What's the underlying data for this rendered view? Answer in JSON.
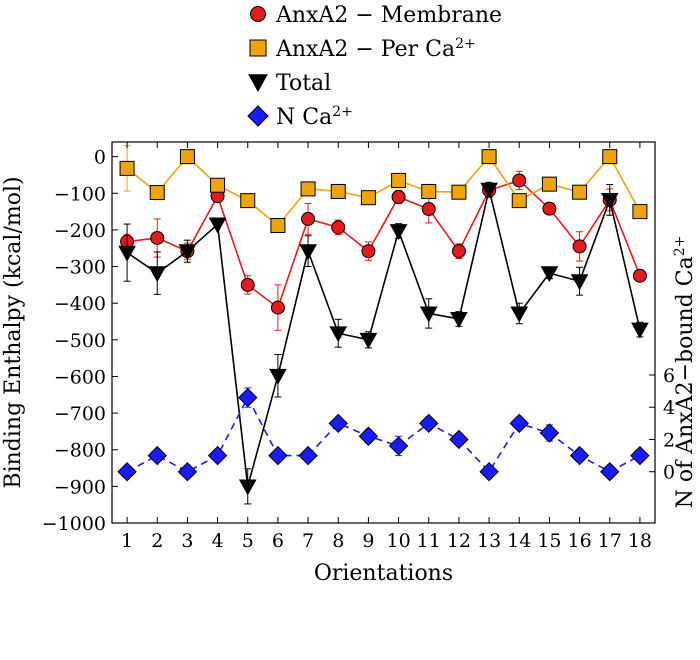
{
  "chart_data": {
    "type": "line",
    "title": "",
    "xlabel": "Orientations",
    "ylabel": "Binding Enthalpy (kcal/mol)",
    "ylabel_right": "N of AnxA2−bound Ca",
    "ylabel_right_sup": "2+",
    "x": [
      1,
      2,
      3,
      4,
      5,
      6,
      7,
      8,
      9,
      10,
      11,
      12,
      13,
      14,
      15,
      16,
      17,
      18
    ],
    "xlim": [
      0.5,
      18.5
    ],
    "ylim": [
      -1000,
      40
    ],
    "yticks": [
      0,
      -100,
      -200,
      -300,
      -400,
      -500,
      -600,
      -700,
      -800,
      -900,
      -1000
    ],
    "y2ticks": [
      0,
      2,
      4,
      6
    ],
    "y2_scale": {
      "value_at_zero": -860,
      "units_per_count": 44
    },
    "legend_position": "top (outside plot)",
    "series": [
      {
        "name": "AnxA2 − Membrane",
        "name_sup": "",
        "axis": "left",
        "marker": "circle",
        "color": "#e41a1c",
        "dashed": false,
        "values": [
          -232,
          -222,
          -258,
          -108,
          -350,
          -412,
          -170,
          -193,
          -258,
          -110,
          -143,
          -258,
          -92,
          -65,
          -142,
          -245,
          -118,
          -325
        ],
        "errors": [
          20,
          52,
          22,
          0,
          25,
          62,
          42,
          20,
          25,
          18,
          38,
          20,
          15,
          25,
          10,
          40,
          30,
          12
        ]
      },
      {
        "name": "AnxA2 − Per Ca",
        "name_sup": "2+",
        "axis": "left",
        "marker": "square",
        "color": "#f0a30a",
        "dashed": false,
        "values": [
          -32,
          -98,
          0,
          -78,
          -120,
          -188,
          -88,
          -95,
          -112,
          -65,
          -95,
          -97,
          0,
          -120,
          -75,
          -97,
          0,
          -150
        ],
        "errors": [
          62,
          0,
          0,
          0,
          0,
          0,
          0,
          0,
          0,
          20,
          0,
          0,
          0,
          0,
          0,
          0,
          0,
          0
        ]
      },
      {
        "name": "Total",
        "name_sup": "",
        "axis": "left",
        "marker": "triangle-down",
        "color": "#000000",
        "dashed": false,
        "values": [
          -262,
          -318,
          -258,
          -185,
          -900,
          -598,
          -258,
          -482,
          -500,
          -203,
          -428,
          -443,
          -90,
          -428,
          -318,
          -340,
          -118,
          -472
        ],
        "errors": [
          78,
          58,
          30,
          0,
          48,
          58,
          42,
          38,
          22,
          20,
          40,
          20,
          20,
          28,
          15,
          38,
          42,
          20
        ]
      },
      {
        "name": "N Ca",
        "name_sup": "2+",
        "axis": "right",
        "marker": "diamond",
        "color": "#1a1aff",
        "dashed": true,
        "values": [
          0,
          1,
          0,
          1,
          4.6,
          1,
          1,
          3,
          2.2,
          1.6,
          3,
          2,
          0,
          3,
          2.4,
          1,
          0,
          1
        ],
        "errors": [
          0,
          0,
          0,
          0,
          0.6,
          0,
          0,
          0,
          0.4,
          0.6,
          0,
          0,
          0,
          0,
          0.5,
          0,
          0,
          0
        ]
      }
    ]
  }
}
